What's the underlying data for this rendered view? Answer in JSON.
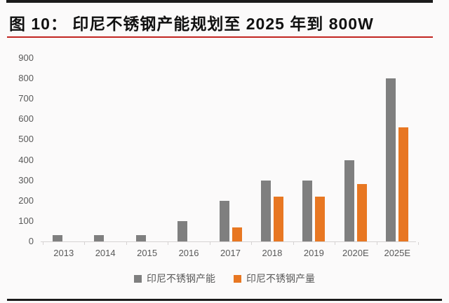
{
  "header": {
    "title": "图 10：  印尼不锈钢产能规划至 2025 年到 800W"
  },
  "colors": {
    "background": "#fbfafa",
    "title_text": "#111111",
    "top_rule_black": "#1b1b1b",
    "red_rule": "#c22420",
    "bottom_rule_black": "#1b1b1b",
    "axis_line": "#d6d3d3",
    "tick_text": "#595959",
    "series_capacity_gray": "#7f7f7f",
    "series_output_orange": "#e87722"
  },
  "chart_data": {
    "type": "bar",
    "title": "印尼不锈钢产能规划至 2025 年到 800W",
    "categories": [
      "2013",
      "2014",
      "2015",
      "2016",
      "2017",
      "2018",
      "2019",
      "2020E",
      "2025E"
    ],
    "series": [
      {
        "name": "印尼不锈钢产能",
        "color": "#7f7f7f",
        "values": [
          30,
          30,
          30,
          100,
          200,
          300,
          300,
          400,
          800
        ]
      },
      {
        "name": "印尼不锈钢产量",
        "color": "#e87722",
        "values": [
          0,
          0,
          0,
          0,
          70,
          220,
          220,
          280,
          560
        ]
      }
    ],
    "xlabel": "",
    "ylabel": "",
    "ylim": [
      0,
      900
    ],
    "ytick_step": 100,
    "ytick_labels": [
      "0",
      "100",
      "200",
      "300",
      "400",
      "500",
      "600",
      "700",
      "800",
      "900"
    ],
    "grid": false,
    "legend_position": "bottom"
  }
}
